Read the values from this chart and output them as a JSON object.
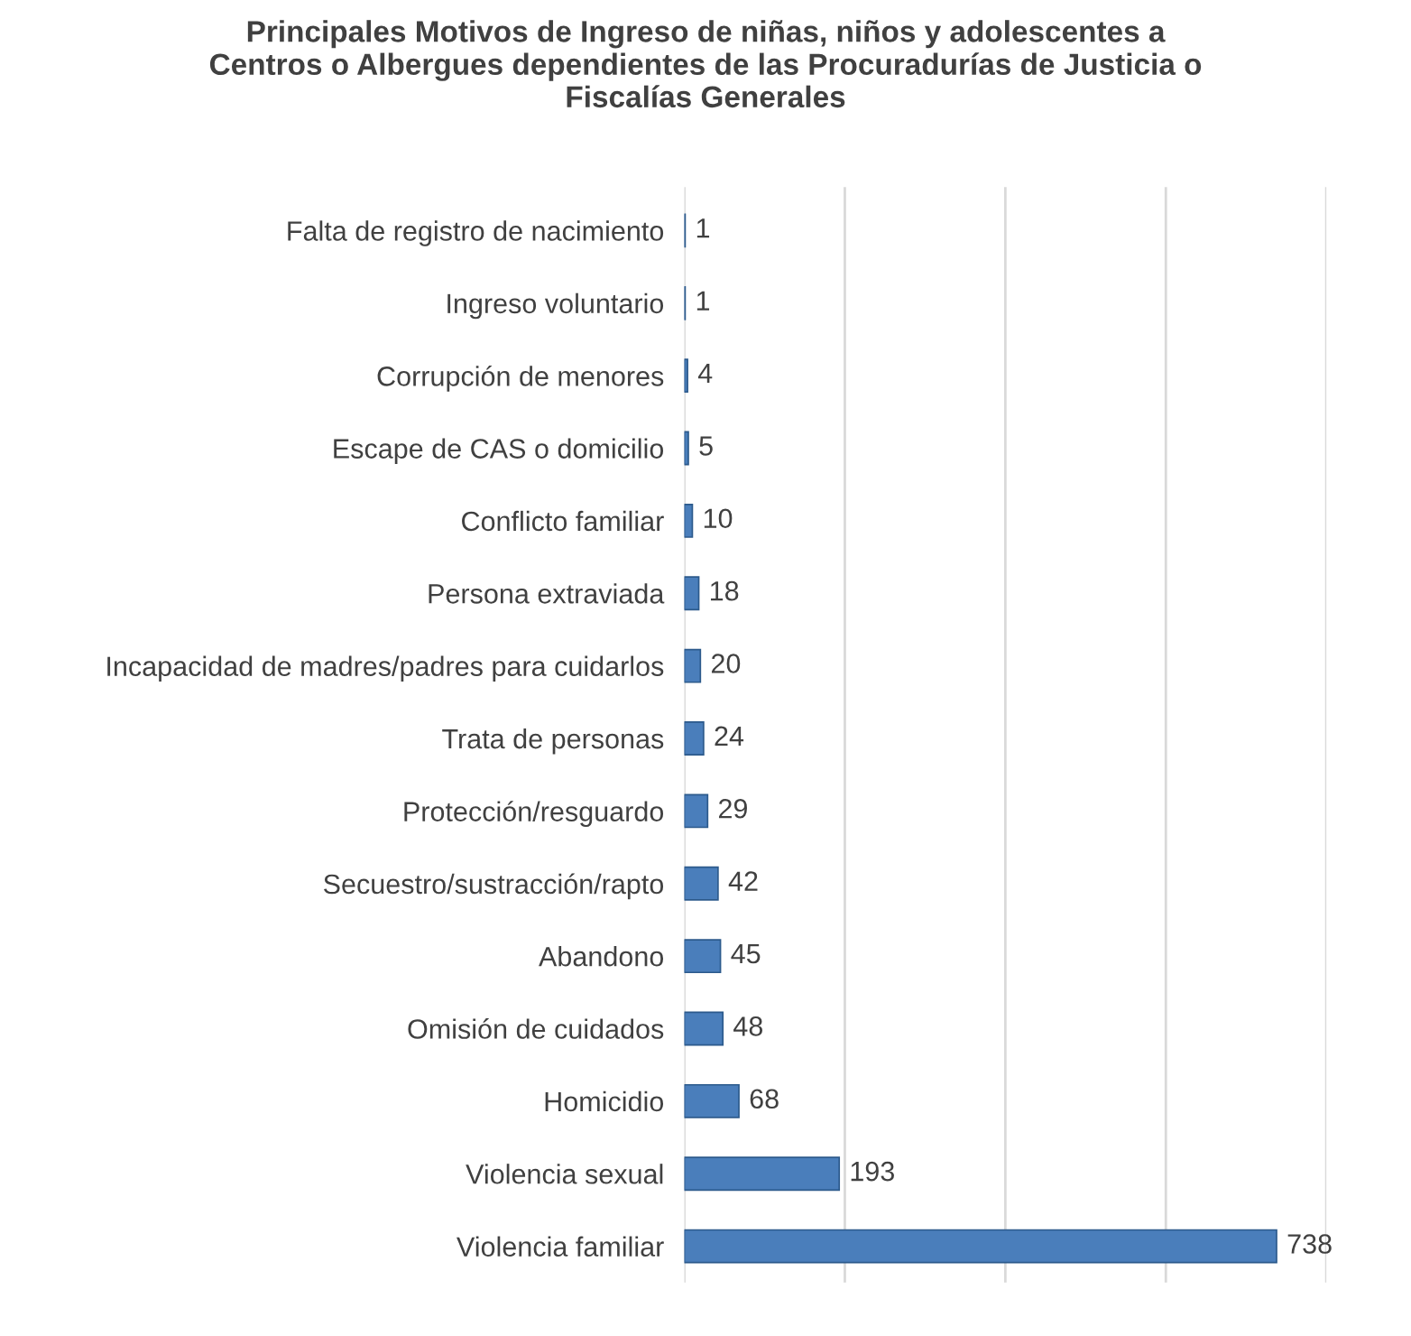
{
  "chart_data": {
    "type": "bar",
    "orientation": "horizontal",
    "title": "Principales Motivos de Ingreso de niñas, niños y adolescentes a\nCentros o Albergues dependientes de las Procuradurías de Justicia o\nFiscalías Generales",
    "categories": [
      "Falta de registro de nacimiento",
      "Ingreso voluntario",
      "Corrupción de menores",
      "Escape de CAS o domicilio",
      "Conflicto familiar",
      "Persona extraviada",
      "Incapacidad de madres/padres para cuidarlos",
      "Trata de personas",
      "Protección/resguardo",
      "Secuestro/sustracción/rapto",
      "Abandono",
      "Omisión de cuidados",
      "Homicidio",
      "Violencia sexual",
      "Violencia familiar"
    ],
    "values": [
      1,
      1,
      4,
      5,
      10,
      18,
      20,
      24,
      29,
      42,
      45,
      48,
      68,
      193,
      738
    ],
    "color": "#4a7ebb",
    "xlim": [
      0,
      800
    ],
    "xticks": [
      {
        "value": 0,
        "label": null
      },
      {
        "value": 200,
        "label": null
      },
      {
        "value": 400,
        "label": null
      },
      {
        "value": 600,
        "label": null
      },
      {
        "value": 800,
        "label": null
      }
    ],
    "tick_labels": "y",
    "grid": "x",
    "data_labels": true
  }
}
